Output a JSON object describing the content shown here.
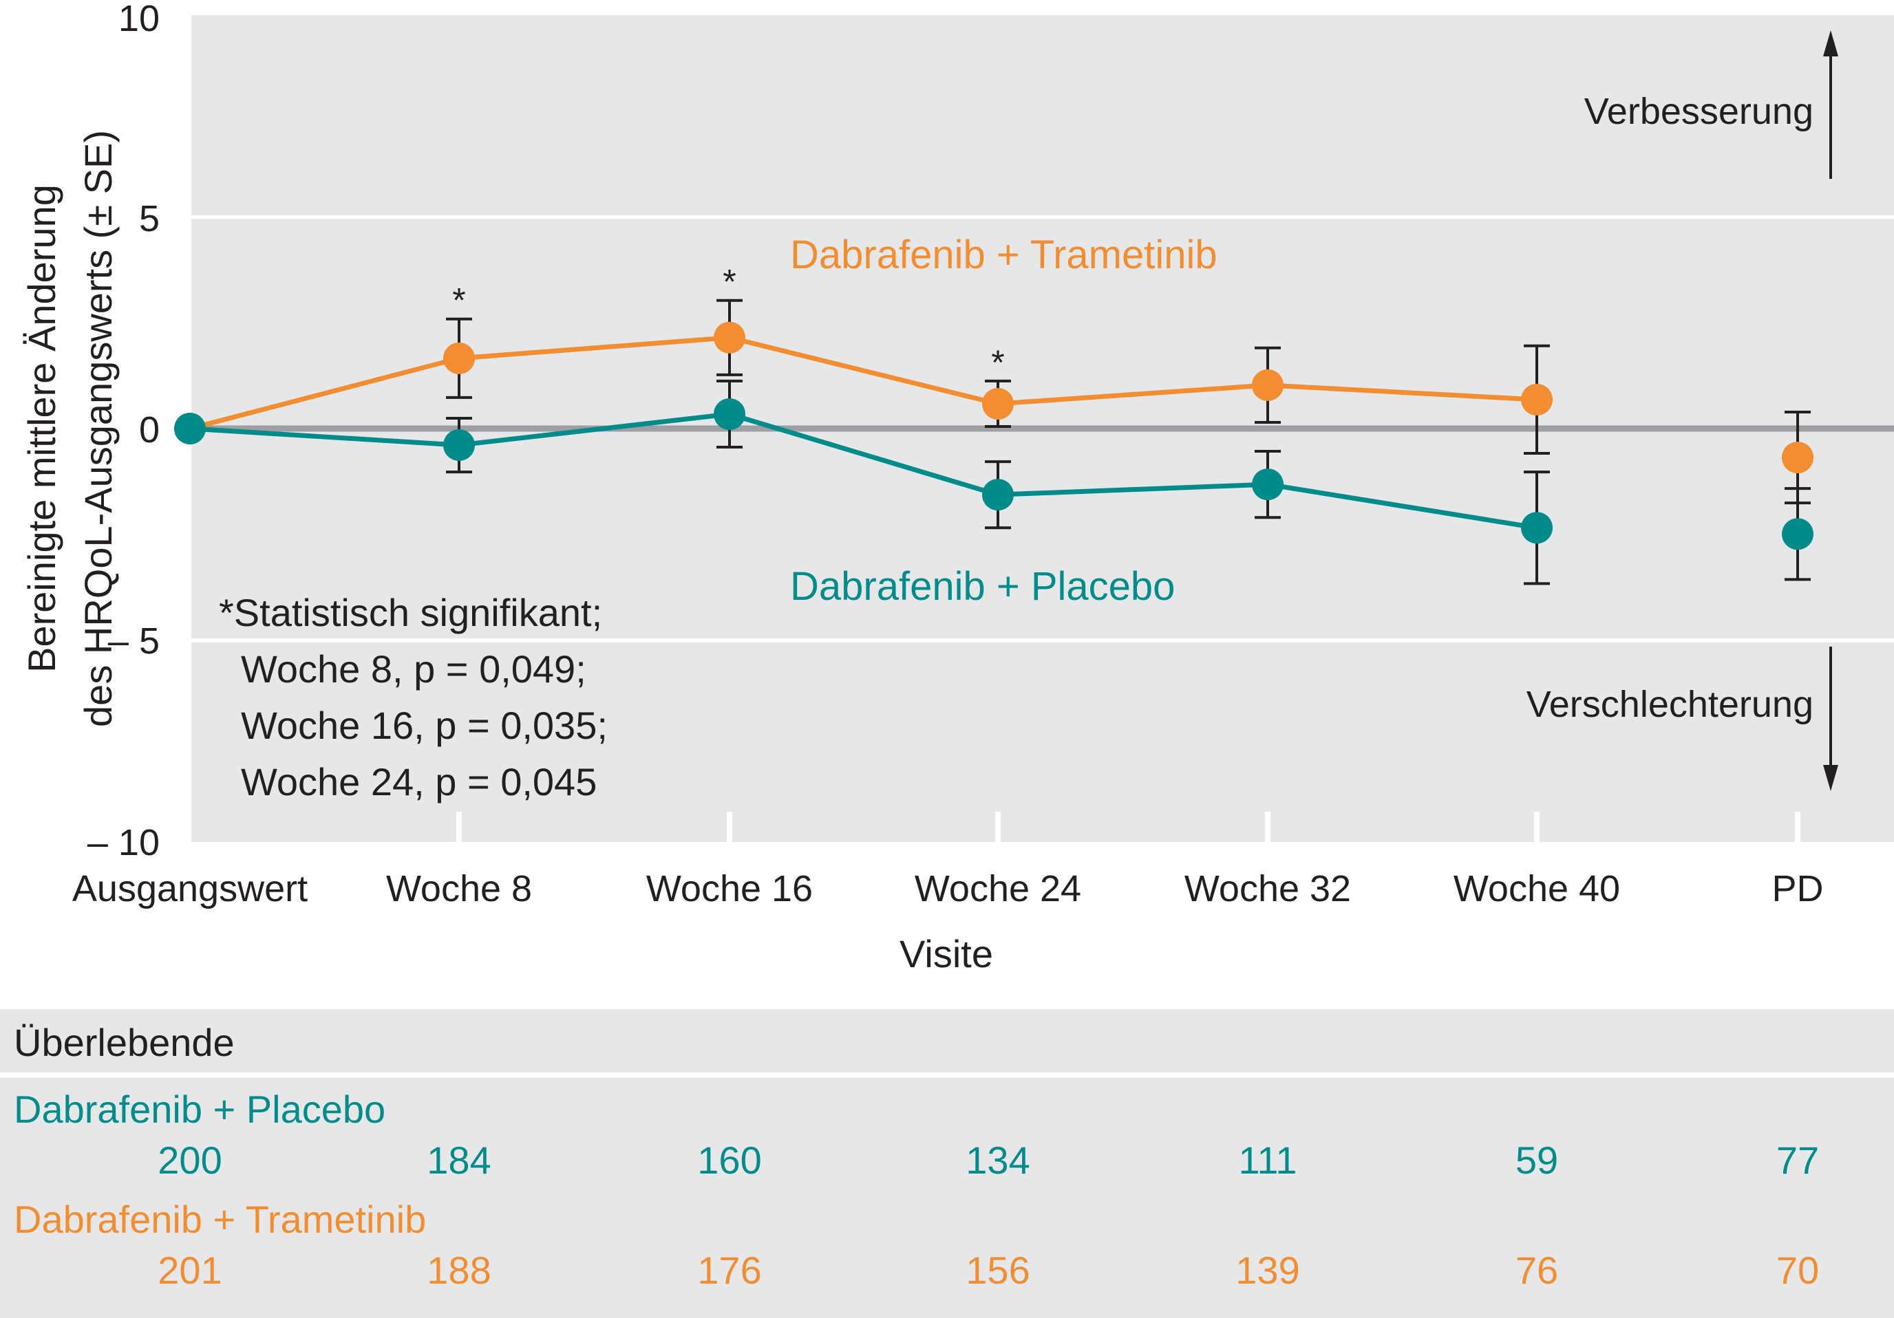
{
  "chart_data": {
    "type": "line",
    "title": "",
    "xlabel": "Visite",
    "ylabel_lines": [
      "Bereinigte mittlere Änderung",
      "des HRQoL-Ausgangswerts (± SE)"
    ],
    "ylim": [
      -10,
      10
    ],
    "yticks": [
      10,
      5,
      0,
      -5,
      -10
    ],
    "ytick_labels": [
      "10",
      "5",
      "0",
      "– 5",
      "– 10"
    ],
    "grid": "horizontal bands",
    "categories": [
      "Ausgangswert",
      "Woche 8",
      "Woche 16",
      "Woche 24",
      "Woche 32",
      "Woche 40",
      "PD"
    ],
    "series": [
      {
        "name": "Dabrafenib + Trametinib",
        "color": "#f38d31",
        "values": [
          0,
          1.7,
          2.2,
          0.6,
          1.05,
          0.7,
          -0.7
        ],
        "se": [
          0,
          0.95,
          0.9,
          0.55,
          0.9,
          1.3,
          1.1
        ],
        "connected": [
          true,
          true,
          true,
          true,
          true,
          true,
          false
        ]
      },
      {
        "name": "Dabrafenib + Placebo",
        "color": "#008b8b",
        "values": [
          0,
          -0.4,
          0.35,
          -1.6,
          -1.35,
          -2.4,
          -2.55
        ],
        "se": [
          0,
          0.65,
          0.8,
          0.8,
          0.8,
          1.35,
          1.1
        ],
        "connected": [
          true,
          true,
          true,
          true,
          true,
          true,
          false
        ]
      }
    ],
    "significance_markers": [
      {
        "category": "Woche 8",
        "symbol": "*"
      },
      {
        "category": "Woche 16",
        "symbol": "*"
      },
      {
        "category": "Woche 24",
        "symbol": "*"
      }
    ],
    "annotations": {
      "improvement": "Verbesserung",
      "worsening": "Verschlechterung",
      "note_lines": [
        "*Statistisch signifikant;",
        "Woche 8, p = 0,049;",
        "Woche 16, p = 0,035;",
        "Woche 24, p = 0,045"
      ]
    },
    "survivors_table": {
      "title": "Überlebende",
      "rows": [
        {
          "name": "Dabrafenib + Placebo",
          "color": "#008b8b",
          "values": [
            "200",
            "184",
            "160",
            "134",
            "111",
            "59",
            "77"
          ]
        },
        {
          "name": "Dabrafenib + Trametinib",
          "color": "#f38d31",
          "values": [
            "201",
            "188",
            "176",
            "156",
            "139",
            "76",
            "70"
          ]
        }
      ]
    }
  }
}
